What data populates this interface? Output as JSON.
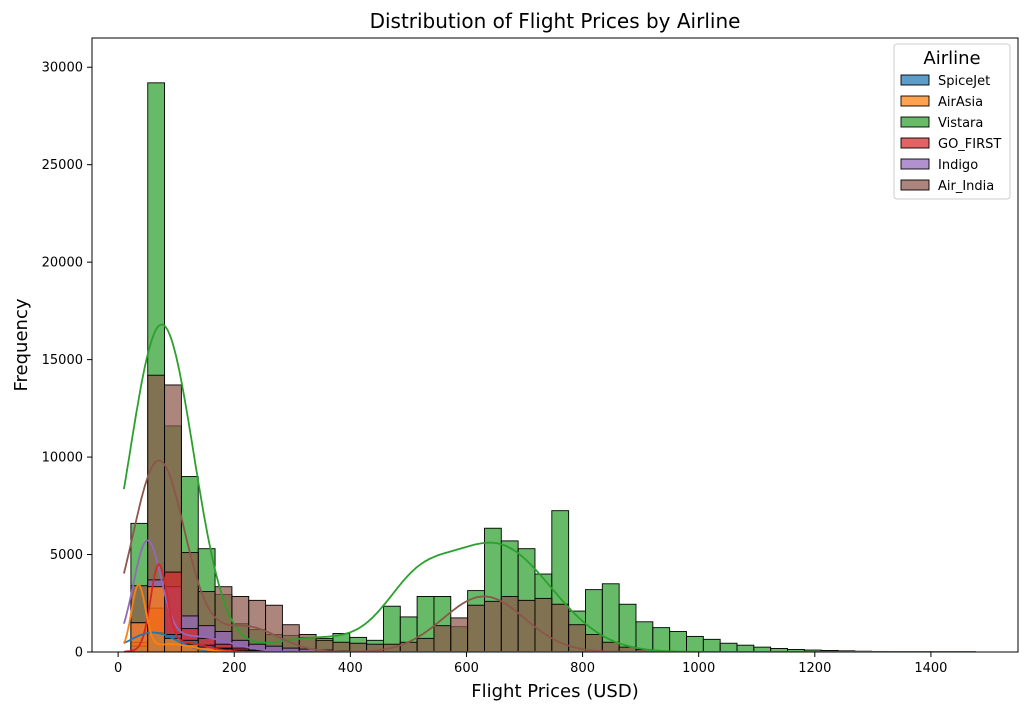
{
  "chart_data": {
    "type": "histogram",
    "title": "Distribution of Flight Prices by Airline",
    "xlabel": "Flight Prices (USD)",
    "ylabel": "Frequency",
    "xlim": [
      -45,
      1550
    ],
    "ylim": [
      0,
      31500
    ],
    "xticks": [
      0,
      200,
      400,
      600,
      800,
      1000,
      1200,
      1400
    ],
    "yticks": [
      0,
      5000,
      10000,
      15000,
      20000,
      25000,
      30000
    ],
    "grid": false,
    "legend": {
      "title": "Airline",
      "placement": "top-right"
    },
    "bin_start": 22,
    "bin_width": 29,
    "series": [
      {
        "name": "Vistara",
        "color": "#2ca02c",
        "values": [
          6600,
          29200,
          11600,
          9000,
          5300,
          2950,
          1450,
          1150,
          900,
          850,
          750,
          700,
          950,
          750,
          600,
          2350,
          1800,
          2850,
          2850,
          1300,
          3150,
          6350,
          5700,
          5300,
          4000,
          7250,
          2100,
          3200,
          3500,
          2450,
          1550,
          1250,
          1050,
          800,
          650,
          450,
          350,
          250,
          180,
          130,
          100,
          80,
          60,
          40,
          30,
          20,
          15,
          12,
          10,
          8
        ]
      },
      {
        "name": "Air_India",
        "color": "#8c564b",
        "values": [
          3400,
          14200,
          13700,
          5100,
          3100,
          3350,
          2850,
          2650,
          2400,
          1400,
          900,
          600,
          500,
          450,
          400,
          400,
          500,
          700,
          1350,
          1750,
          2400,
          2600,
          2850,
          2650,
          2750,
          2450,
          1400,
          900,
          500,
          250,
          120,
          50
        ]
      },
      {
        "name": "Indigo",
        "color": "#9467bd",
        "values": [
          1500,
          3700,
          3350,
          1850,
          1350,
          1050,
          600,
          400,
          300,
          200,
          150,
          100,
          50
        ]
      },
      {
        "name": "GO_FIRST",
        "color": "#d62728",
        "values": [
          500,
          2250,
          4100,
          1200,
          700,
          400,
          200,
          100,
          50
        ]
      },
      {
        "name": "SpiceJet",
        "color": "#1f77b4",
        "values": [
          300,
          1000,
          900,
          600,
          350,
          200,
          100,
          50
        ]
      },
      {
        "name": "AirAsia",
        "color": "#ff7f0e",
        "values": [
          1500,
          3350,
          700,
          400,
          250,
          150,
          80
        ]
      }
    ],
    "kde_peaks": [
      {
        "name": "Vistara",
        "peaks": [
          [
            75,
            16800,
            55
          ],
          [
            650,
            5500,
            95
          ],
          [
            510,
            2300,
            55
          ],
          [
            340,
            700,
            80
          ]
        ]
      },
      {
        "name": "Air_India",
        "peaks": [
          [
            70,
            9800,
            45
          ],
          [
            220,
            1300,
            55
          ],
          [
            630,
            2850,
            70
          ]
        ]
      },
      {
        "name": "Indigo",
        "peaks": [
          [
            50,
            5400,
            24
          ],
          [
            130,
            800,
            60
          ]
        ]
      },
      {
        "name": "GO_FIRST",
        "peaks": [
          [
            70,
            4200,
            14
          ],
          [
            110,
            500,
            40
          ]
        ]
      },
      {
        "name": "SpiceJet",
        "peaks": [
          [
            60,
            1000,
            40
          ]
        ]
      },
      {
        "name": "AirAsia",
        "peaks": [
          [
            35,
            3300,
            12
          ],
          [
            90,
            400,
            40
          ]
        ]
      }
    ],
    "legend_entries": [
      "SpiceJet",
      "AirAsia",
      "Vistara",
      "GO_FIRST",
      "Indigo",
      "Air_India"
    ]
  }
}
